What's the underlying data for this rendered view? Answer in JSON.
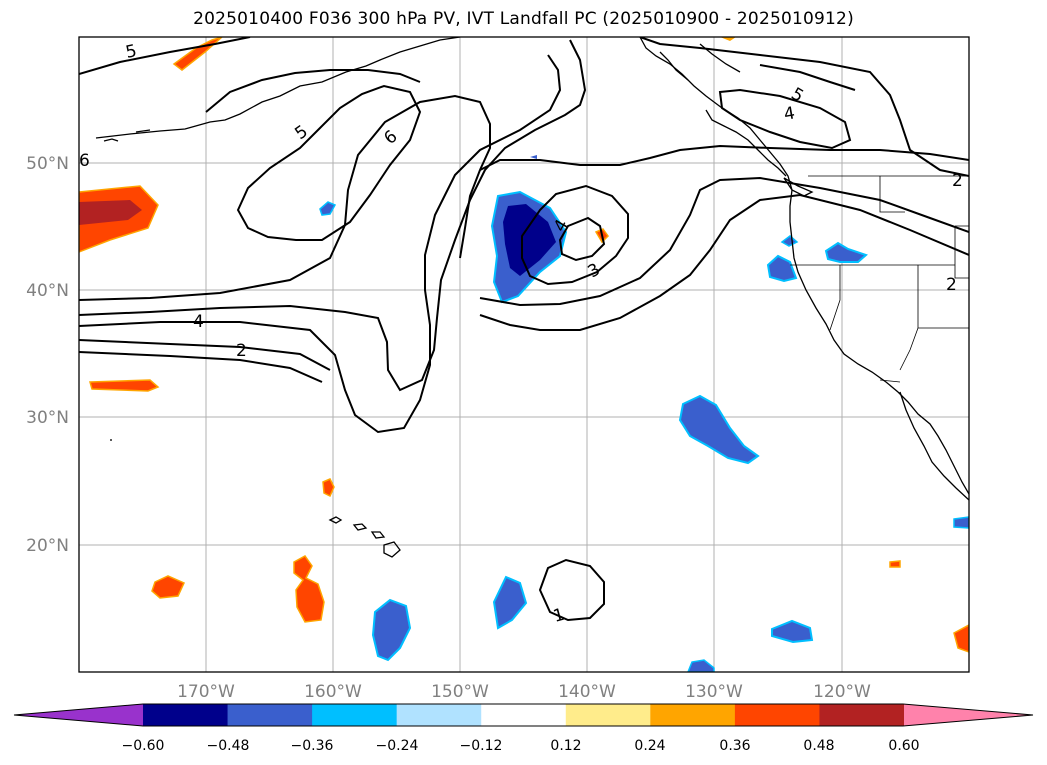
{
  "title": "2025010400 F036 300 hPa PV, IVT Landfall PC (2025010900 - 2025010912)",
  "map": {
    "lon_range": [
      -180,
      -110
    ],
    "lat_range": [
      10,
      60
    ],
    "lat_labels": [
      "50°N",
      "40°N",
      "30°N",
      "20°N"
    ],
    "lon_labels": [
      "170°W",
      "160°W",
      "150°W",
      "140°W",
      "130°W",
      "120°W"
    ],
    "gridlines": true,
    "contour_variable": "300 hPa PV",
    "contour_labels": [
      "5",
      "5",
      "6",
      "4",
      "3",
      "4",
      "2",
      "6",
      "1",
      "4",
      "5",
      "2",
      "2"
    ],
    "fill_variable": "IVT Landfall PC"
  },
  "colorbar": {
    "ticks": [
      "−0.60",
      "−0.48",
      "−0.36",
      "−0.24",
      "−0.12",
      "0.12",
      "0.24",
      "0.36",
      "0.48",
      "0.60"
    ],
    "colors": [
      "#9932cc",
      "#00008b",
      "#3a5fcd",
      "#00bfff",
      "#b0e2ff",
      "#ffffff",
      "#ffec8b",
      "#ffa500",
      "#ff4500",
      "#b22222",
      "#ff82ab"
    ],
    "extend": "both"
  }
}
